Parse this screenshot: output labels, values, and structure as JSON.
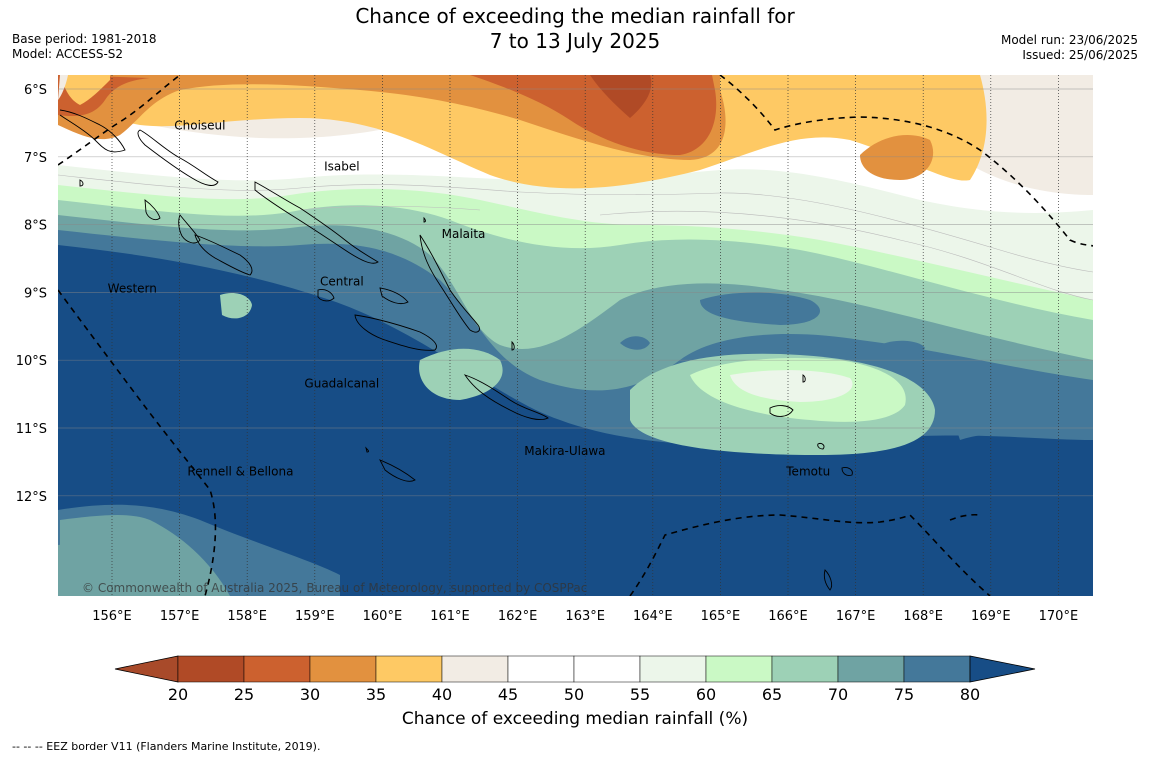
{
  "title": {
    "line1": "Chance of exceeding the median rainfall for",
    "line2": "7 to 13 July 2025"
  },
  "meta": {
    "base_period": "Base period: 1981-2018",
    "model": "Model: ACCESS-S2",
    "model_run": "Model run: 23/06/2025",
    "issued": "Issued: 25/06/2025"
  },
  "axes": {
    "lat_labels": [
      "6°S",
      "7°S",
      "8°S",
      "9°S",
      "10°S",
      "11°S",
      "12°S"
    ],
    "lon_labels": [
      "156°E",
      "157°E",
      "158°E",
      "159°E",
      "160°E",
      "161°E",
      "162°E",
      "163°E",
      "164°E",
      "165°E",
      "166°E",
      "167°E",
      "168°E",
      "169°E",
      "170°E"
    ],
    "lon_range": [
      155.2,
      170.5
    ],
    "lat_range": [
      -13.5,
      -5.8
    ]
  },
  "provinces": [
    {
      "name": "Choiseul",
      "lon": 157.3,
      "lat": -6.6
    },
    {
      "name": "Isabel",
      "lon": 159.4,
      "lat": -7.2
    },
    {
      "name": "Malaita",
      "lon": 161.2,
      "lat": -8.2
    },
    {
      "name": "Central",
      "lon": 159.4,
      "lat": -8.9
    },
    {
      "name": "Western",
      "lon": 156.3,
      "lat": -9.0
    },
    {
      "name": "Guadalcanal",
      "lon": 159.4,
      "lat": -10.4
    },
    {
      "name": "Makira-Ulawa",
      "lon": 162.7,
      "lat": -11.4
    },
    {
      "name": "Rennell & Bellona",
      "lon": 157.9,
      "lat": -11.7
    },
    {
      "name": "Temotu",
      "lon": 166.3,
      "lat": -11.7
    }
  ],
  "copyright": "© Commonwealth of Australia 2025, Bureau of Meteorology, supported by COSPPac",
  "colorbar": {
    "ticks": [
      "20",
      "25",
      "30",
      "35",
      "40",
      "45",
      "50",
      "55",
      "60",
      "65",
      "70",
      "75",
      "80"
    ],
    "colors": [
      "#a84a2a",
      "#b04a26",
      "#cc612f",
      "#e2913f",
      "#fec964",
      "#f2ece4",
      "#ffffff",
      "#ffffff",
      "#ecf6ea",
      "#caf9c5",
      "#9dd1b6",
      "#6fa3a3",
      "#44789a",
      "#174d86"
    ],
    "title": "Chance of exceeding median rainfall (%)"
  },
  "footnote": "--  --  -- EEZ border V11 (Flanders Marine Institute, 2019)."
}
